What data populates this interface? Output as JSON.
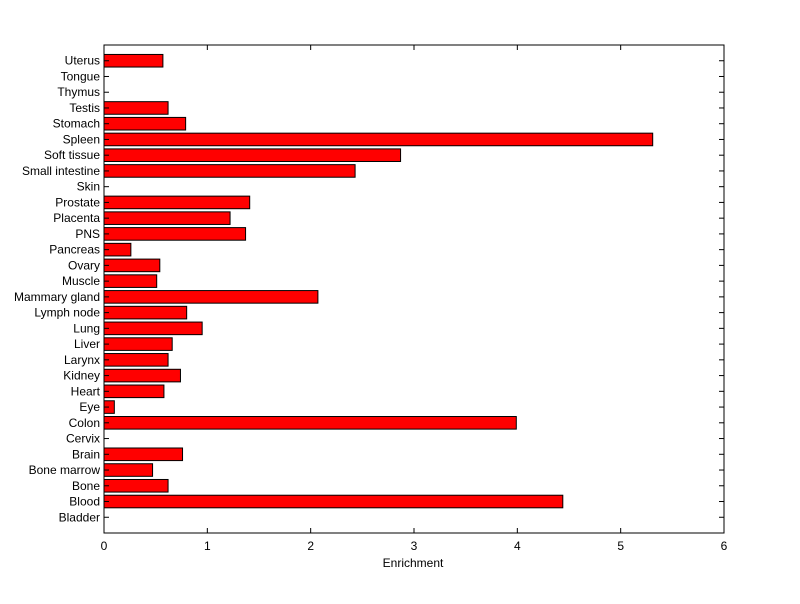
{
  "chart_data": {
    "type": "bar",
    "orientation": "horizontal",
    "xlabel": "Enrichment",
    "xlim": [
      0,
      6
    ],
    "xticks": [
      0,
      1,
      2,
      3,
      4,
      5,
      6
    ],
    "grid": false,
    "bar_color": "#ff0000",
    "bar_edge_color": "#000000",
    "categories": [
      "Uterus",
      "Tongue",
      "Thymus",
      "Testis",
      "Stomach",
      "Spleen",
      "Soft tissue",
      "Small intestine",
      "Skin",
      "Prostate",
      "Placenta",
      "PNS",
      "Pancreas",
      "Ovary",
      "Muscle",
      "Mammary gland",
      "Lymph node",
      "Lung",
      "Liver",
      "Larynx",
      "Kidney",
      "Heart",
      "Eye",
      "Colon",
      "Cervix",
      "Brain",
      "Bone marrow",
      "Bone",
      "Blood",
      "Bladder"
    ],
    "values": [
      0.57,
      0,
      0,
      0.62,
      0.79,
      5.31,
      2.87,
      2.43,
      0,
      1.41,
      1.22,
      1.37,
      0.26,
      0.54,
      0.51,
      2.07,
      0.8,
      0.95,
      0.66,
      0.62,
      0.74,
      0.58,
      0.1,
      3.99,
      0,
      0.76,
      0.47,
      0.62,
      4.44,
      0
    ]
  }
}
